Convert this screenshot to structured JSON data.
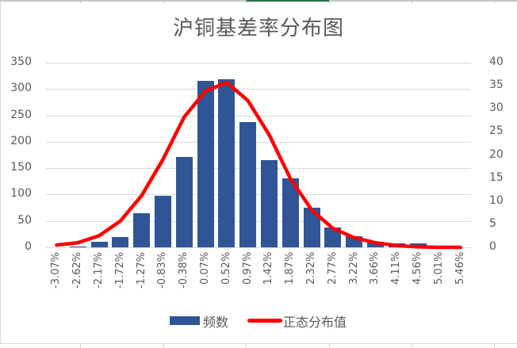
{
  "chart_data": {
    "type": "bar+line",
    "title": "沪铜基差率分布图",
    "categories": [
      "-3.07%",
      "-2.62%",
      "-2.17%",
      "-1.72%",
      "-1.27%",
      "-0.83%",
      "-0.38%",
      "0.07%",
      "0.52%",
      "0.97%",
      "1.42%",
      "1.87%",
      "2.32%",
      "2.77%",
      "3.22%",
      "3.66%",
      "4.11%",
      "4.56%",
      "5.01%",
      "5.46%"
    ],
    "series": [
      {
        "name": "频数",
        "type": "bar",
        "axis": "left",
        "color": "#2f5597",
        "values": [
          0,
          2,
          11,
          20,
          65,
          98,
          171,
          316,
          318,
          237,
          165,
          131,
          75,
          38,
          21,
          10,
          8,
          8,
          0,
          0
        ]
      },
      {
        "name": "正态分布值",
        "type": "line",
        "axis": "right",
        "color": "#ff0000",
        "values": [
          0.5,
          1.0,
          2.5,
          5.7,
          11.2,
          19.0,
          28.2,
          33.8,
          35.7,
          31.8,
          24.4,
          14.9,
          8.1,
          4.1,
          2.1,
          1.0,
          0.4,
          0.1,
          0.0,
          0.0
        ]
      }
    ],
    "xlabel": "",
    "ylabel": "",
    "ylim_left": [
      0,
      350
    ],
    "yticks_left": [
      0,
      50,
      100,
      150,
      200,
      250,
      300,
      350
    ],
    "ylim_right": [
      0,
      40
    ],
    "yticks_right": [
      0,
      5,
      10,
      15,
      20,
      25,
      30,
      35,
      40
    ],
    "grid": true,
    "legend_position": "bottom"
  },
  "legend": {
    "bar_label": "频数",
    "line_label": "正态分布值"
  }
}
